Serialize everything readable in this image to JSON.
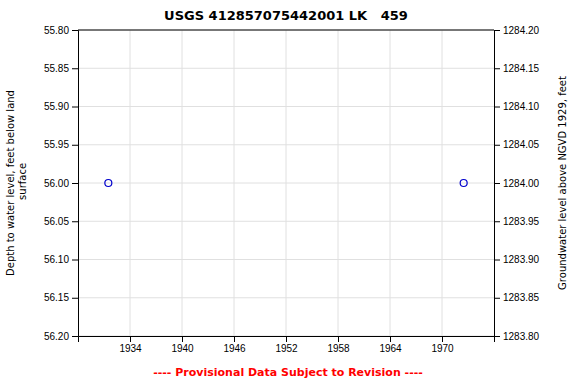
{
  "chart_data": {
    "type": "scatter",
    "title": "USGS 412857075442001 LK   459",
    "x": [
      1931.5,
      1972.5
    ],
    "series": [
      {
        "values": [
          56.0,
          56.0
        ],
        "color": "#0000cc",
        "marker": "open-circle"
      }
    ],
    "xlim": [
      1928,
      1976
    ],
    "xticks": [
      1934,
      1940,
      1946,
      1952,
      1958,
      1964,
      1970
    ],
    "ylim": [
      56.2,
      55.8
    ],
    "yticks": [
      {
        "value": 55.8,
        "label": "55.80"
      },
      {
        "value": 55.85,
        "label": "55.85"
      },
      {
        "value": 55.9,
        "label": "55.90"
      },
      {
        "value": 55.95,
        "label": "55.95"
      },
      {
        "value": 56.0,
        "label": "56.00"
      },
      {
        "value": 56.05,
        "label": "56.05"
      },
      {
        "value": 56.1,
        "label": "56.10"
      },
      {
        "value": 56.15,
        "label": "56.15"
      },
      {
        "value": 56.2,
        "label": "56.20"
      }
    ],
    "ylabel": "Depth to water level, feet below land\n surface",
    "y2lim": [
      1283.8,
      1284.2
    ],
    "y2ticks": [
      {
        "value": 1284.2,
        "label": "1284.20"
      },
      {
        "value": 1284.15,
        "label": "1284.15"
      },
      {
        "value": 1284.1,
        "label": "1284.10"
      },
      {
        "value": 1284.05,
        "label": "1284.05"
      },
      {
        "value": 1284.0,
        "label": "1284.00"
      },
      {
        "value": 1283.95,
        "label": "1283.95"
      },
      {
        "value": 1283.9,
        "label": "1283.90"
      },
      {
        "value": 1283.85,
        "label": "1283.85"
      },
      {
        "value": 1283.8,
        "label": "1283.80"
      }
    ],
    "y2label": "Groundwater level above NGVD 1929, feet",
    "grid": true,
    "annotations": [
      {
        "text": "---- Provisional Data Subject to Revision ----",
        "color": "#ff0000"
      }
    ]
  }
}
